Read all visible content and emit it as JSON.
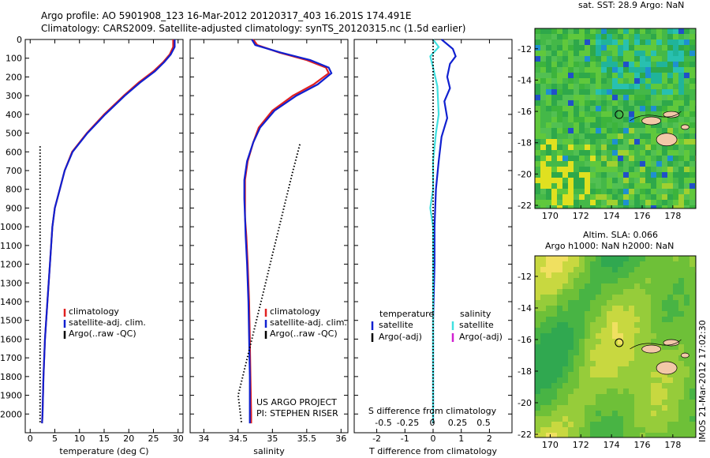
{
  "header": {
    "title_line1": "Argo profile: AO 5901908_123 16-Mar-2012 20120317_403 16.201S 174.491E",
    "title_line2": "Climatology: CARS2009. Satellite-adjusted climatology: synTS_20120315.nc (1.5d earlier)"
  },
  "colors": {
    "climatology": "#e02020",
    "satellite": "#1020d0",
    "argo": "#000000",
    "salinity_satellite": "#40e0e0",
    "salinity_argo": "#d020d0"
  },
  "chart_data": [
    {
      "type": "line",
      "name": "temperature-panel",
      "xlabel": "temperature (deg C)",
      "xlim": [
        -1,
        31
      ],
      "ylim": [
        2100,
        0
      ],
      "xticks": [
        0,
        5,
        10,
        15,
        20,
        25,
        30
      ],
      "yticks": [
        0,
        100,
        200,
        300,
        400,
        500,
        600,
        700,
        800,
        900,
        1000,
        1100,
        1200,
        1300,
        1400,
        1500,
        1600,
        1700,
        1800,
        1900,
        2000
      ],
      "legend": {
        "position": "lower-right",
        "entries": [
          "climatology",
          "satellite-adj. clim.",
          "Argo(..raw -QC)"
        ]
      },
      "series": [
        {
          "name": "climatology",
          "color": "#e02020",
          "points": [
            [
              29.0,
              0
            ],
            [
              29.0,
              40
            ],
            [
              28.3,
              80
            ],
            [
              27.0,
              120
            ],
            [
              25.0,
              170
            ],
            [
              22.0,
              230
            ],
            [
              19.0,
              300
            ],
            [
              15.0,
              400
            ],
            [
              11.5,
              500
            ],
            [
              8.5,
              600
            ],
            [
              7.0,
              700
            ],
            [
              6.0,
              800
            ],
            [
              5.0,
              900
            ],
            [
              4.5,
              1000
            ],
            [
              4.0,
              1200
            ],
            [
              3.5,
              1400
            ],
            [
              3.0,
              1600
            ],
            [
              2.7,
              1800
            ],
            [
              2.5,
              2000
            ],
            [
              2.4,
              2050
            ]
          ]
        },
        {
          "name": "satellite-adj. clim.",
          "color": "#1020d0",
          "points": [
            [
              29.3,
              0
            ],
            [
              29.3,
              40
            ],
            [
              28.5,
              80
            ],
            [
              27.2,
              120
            ],
            [
              25.3,
              170
            ],
            [
              22.3,
              230
            ],
            [
              19.2,
              300
            ],
            [
              15.2,
              400
            ],
            [
              11.6,
              500
            ],
            [
              8.6,
              600
            ],
            [
              7.0,
              700
            ],
            [
              6.0,
              800
            ],
            [
              5.0,
              900
            ],
            [
              4.5,
              1000
            ],
            [
              4.0,
              1200
            ],
            [
              3.5,
              1400
            ],
            [
              3.0,
              1600
            ],
            [
              2.7,
              1800
            ],
            [
              2.5,
              2000
            ],
            [
              2.4,
              2050
            ]
          ]
        },
        {
          "name": "Argo(..raw -QC)",
          "color": "#000000",
          "style": "dotted",
          "points": [
            [
              2.0,
              570
            ],
            [
              2.0,
              800
            ],
            [
              2.0,
              1100
            ],
            [
              2.0,
              1400
            ],
            [
              2.0,
              1600
            ],
            [
              2.0,
              1800
            ],
            [
              2.0,
              2050
            ]
          ]
        }
      ]
    },
    {
      "type": "line",
      "name": "salinity-panel",
      "xlabel": "salinity",
      "xlim": [
        33.8,
        36.1
      ],
      "ylim": [
        2100,
        0
      ],
      "xticks": [
        34,
        34.5,
        35,
        35.5,
        36
      ],
      "legend": {
        "position": "lower-right",
        "entries": [
          "climatology",
          "satellite-adj. clim.",
          "Argo(..raw -QC)"
        ]
      },
      "annotations": [
        "US ARGO PROJECT",
        "PI: STEPHEN RISER"
      ],
      "series": [
        {
          "name": "climatology",
          "color": "#e02020",
          "points": [
            [
              34.72,
              0
            ],
            [
              34.78,
              30
            ],
            [
              35.1,
              70
            ],
            [
              35.5,
              110
            ],
            [
              35.78,
              150
            ],
            [
              35.82,
              180
            ],
            [
              35.6,
              240
            ],
            [
              35.3,
              300
            ],
            [
              35.0,
              380
            ],
            [
              34.8,
              470
            ],
            [
              34.72,
              550
            ],
            [
              34.64,
              650
            ],
            [
              34.6,
              750
            ],
            [
              34.6,
              850
            ],
            [
              34.6,
              950
            ],
            [
              34.62,
              1050
            ],
            [
              34.64,
              1200
            ],
            [
              34.66,
              1400
            ],
            [
              34.67,
              1600
            ],
            [
              34.68,
              1800
            ],
            [
              34.69,
              2000
            ],
            [
              34.69,
              2050
            ]
          ]
        },
        {
          "name": "satellite-adj. clim.",
          "color": "#1020d0",
          "points": [
            [
              34.7,
              0
            ],
            [
              34.75,
              30
            ],
            [
              35.12,
              70
            ],
            [
              35.55,
              110
            ],
            [
              35.82,
              150
            ],
            [
              35.86,
              180
            ],
            [
              35.66,
              240
            ],
            [
              35.35,
              300
            ],
            [
              35.03,
              380
            ],
            [
              34.82,
              470
            ],
            [
              34.72,
              550
            ],
            [
              34.63,
              650
            ],
            [
              34.59,
              750
            ],
            [
              34.59,
              850
            ],
            [
              34.6,
              950
            ],
            [
              34.61,
              1050
            ],
            [
              34.63,
              1200
            ],
            [
              34.65,
              1400
            ],
            [
              34.66,
              1600
            ],
            [
              34.67,
              1800
            ],
            [
              34.67,
              2000
            ],
            [
              34.67,
              2050
            ]
          ]
        },
        {
          "name": "Argo(..raw -QC)",
          "color": "#000000",
          "style": "dotted",
          "points": [
            [
              35.4,
              560
            ],
            [
              35.3,
              700
            ],
            [
              35.2,
              850
            ],
            [
              35.1,
              1000
            ],
            [
              35.0,
              1150
            ],
            [
              34.9,
              1300
            ],
            [
              34.8,
              1450
            ],
            [
              34.7,
              1600
            ],
            [
              34.6,
              1750
            ],
            [
              34.5,
              1900
            ],
            [
              34.55,
              2050
            ]
          ]
        }
      ]
    },
    {
      "type": "line",
      "name": "difference-panel",
      "xlabel": "T difference from climatology",
      "xlabel_top": "S difference from climatology",
      "xlim": [
        -2.8,
        2.8
      ],
      "ylim": [
        2100,
        0
      ],
      "xticks": [
        -2,
        -1,
        0,
        1,
        2
      ],
      "xticks_top": [
        "-0.5",
        "-0.25",
        "0",
        "0.25",
        "0.5"
      ],
      "legend": {
        "position": "lower",
        "temperature_heading": "temperature",
        "salinity_heading": "salinity",
        "entries": [
          "satellite",
          "Argo(-adj)",
          "satellite",
          "Argo(-adj)"
        ]
      },
      "series": [
        {
          "name": "satellite",
          "group": "temperature",
          "color": "#1020d0",
          "points": [
            [
              0.3,
              0
            ],
            [
              0.7,
              50
            ],
            [
              0.8,
              90
            ],
            [
              0.6,
              130
            ],
            [
              0.5,
              200
            ],
            [
              0.6,
              260
            ],
            [
              0.4,
              330
            ],
            [
              0.5,
              420
            ],
            [
              0.3,
              520
            ],
            [
              0.2,
              650
            ],
            [
              0.1,
              800
            ],
            [
              0.05,
              1000
            ],
            [
              0.05,
              1200
            ],
            [
              0.0,
              1500
            ],
            [
              0.0,
              1800
            ],
            [
              0.0,
              2050
            ]
          ]
        },
        {
          "name": "satellite",
          "group": "salinity",
          "color": "#40e0e0",
          "points": [
            [
              0.0,
              0
            ],
            [
              0.2,
              40
            ],
            [
              -0.1,
              90
            ],
            [
              0.0,
              150
            ],
            [
              0.15,
              250
            ],
            [
              0.2,
              400
            ],
            [
              0.1,
              500
            ],
            [
              0.0,
              650
            ],
            [
              0.0,
              800
            ],
            [
              -0.1,
              900
            ],
            [
              0.0,
              1000
            ],
            [
              0.0,
              1200
            ],
            [
              0.0,
              1500
            ],
            [
              0.0,
              2050
            ]
          ]
        },
        {
          "name": "reference",
          "color": "#000000",
          "style": "dotted",
          "points": [
            [
              0.0,
              0
            ],
            [
              0.0,
              2050
            ]
          ]
        }
      ]
    },
    {
      "type": "heatmap",
      "name": "sst-map",
      "title": "sat. SST: 28.9  Argo: NaN",
      "xlim": [
        169,
        179.5
      ],
      "ylim": [
        -22.2,
        -10.7
      ],
      "xticks": [
        170,
        172,
        174,
        176,
        178
      ],
      "yticks": [
        -12,
        -14,
        -16,
        -18,
        -20,
        -22
      ],
      "marker": {
        "lon": 174.5,
        "lat": -16.2
      }
    },
    {
      "type": "heatmap",
      "name": "sla-map",
      "title": "Altim. SLA: 0.066",
      "subtitle": "Argo h1000: NaN  h2000: NaN",
      "xlim": [
        169,
        179.5
      ],
      "ylim": [
        -22.2,
        -10.7
      ],
      "xticks": [
        170,
        172,
        174,
        176,
        178
      ],
      "yticks": [
        -12,
        -14,
        -16,
        -18,
        -20,
        -22
      ],
      "marker": {
        "lon": 174.5,
        "lat": -16.2
      }
    }
  ],
  "footer": {
    "stamp": "IMOS 21-Mar-2012 17:02:30"
  }
}
